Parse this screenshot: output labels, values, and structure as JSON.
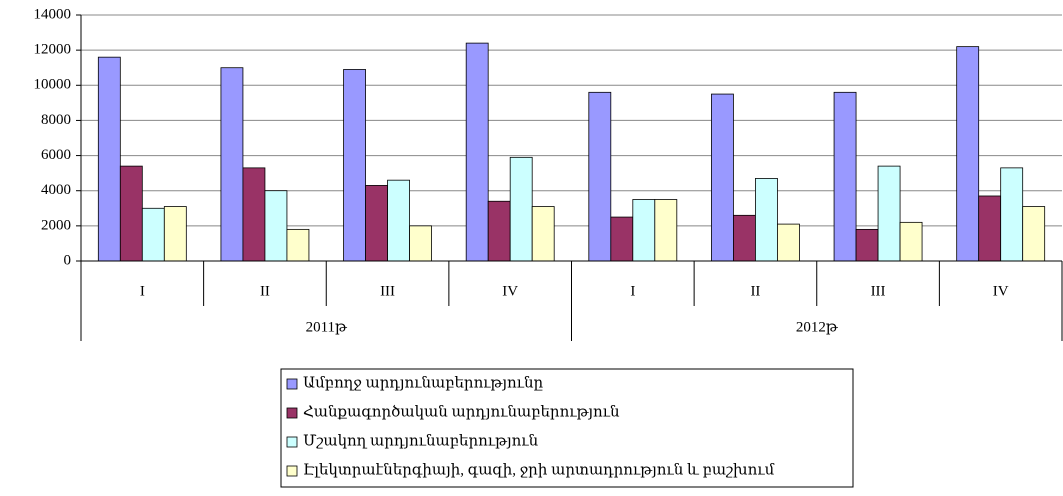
{
  "chart_data": {
    "type": "bar",
    "categories": [
      "I",
      "II",
      "III",
      "IV",
      "I",
      "II",
      "III",
      "IV"
    ],
    "groups": [
      {
        "label": "2011թ",
        "span": 4
      },
      {
        "label": "2012թ",
        "span": 4
      }
    ],
    "series": [
      {
        "name": "Ամբողջ արդյունաբերությունը",
        "color": "#9999ff",
        "values": [
          11600,
          11000,
          10900,
          12400,
          9600,
          9500,
          9600,
          12200
        ]
      },
      {
        "name": "Հանքագործական արդյունաբերություն",
        "color": "#993366",
        "values": [
          5400,
          5300,
          4300,
          3400,
          2500,
          2600,
          1800,
          3700
        ]
      },
      {
        "name": "Մշակող արդյունաբերություն",
        "color": "#ccffff",
        "values": [
          3000,
          4000,
          4600,
          5900,
          3500,
          4700,
          5400,
          5300
        ]
      },
      {
        "name": "Էլեկտրաէներգիայի, գազի, ջրի արտադրություն և բաշխում",
        "color": "#ffffcc",
        "values": [
          3100,
          1800,
          2000,
          3100,
          3500,
          2100,
          2200,
          3100
        ]
      }
    ],
    "ylim": [
      0,
      14000
    ],
    "yticks": [
      0,
      2000,
      4000,
      6000,
      8000,
      10000,
      12000,
      14000
    ],
    "grid": true,
    "legend": "bottom"
  }
}
